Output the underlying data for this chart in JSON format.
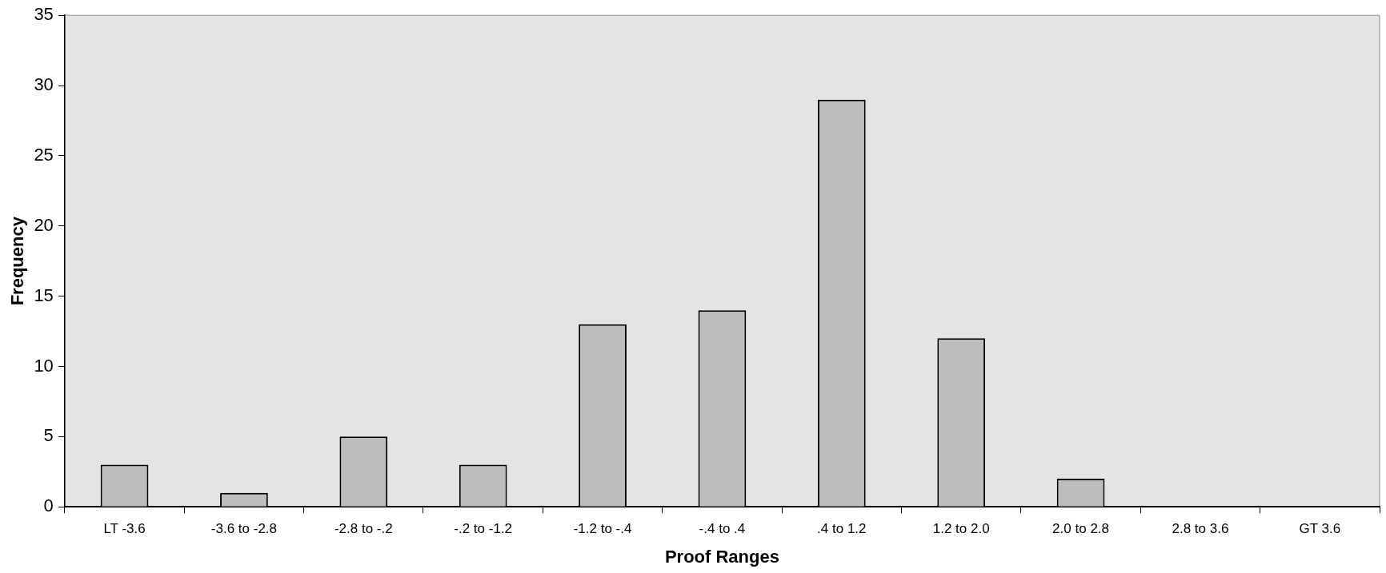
{
  "chart_data": {
    "type": "bar",
    "xlabel": "Proof Ranges",
    "ylabel": "Frequency",
    "categories": [
      "LT -3.6",
      "-3.6 to -2.8",
      "-2.8 to -.2",
      "-.2 to -1.2",
      "-1.2 to -.4",
      "-.4 to .4",
      ".4 to 1.2",
      "1.2 to 2.0",
      "2.0 to 2.8",
      "2.8 to 3.6",
      "GT 3.6"
    ],
    "values": [
      3,
      1,
      5,
      3,
      13,
      14,
      29,
      12,
      2,
      0,
      0
    ],
    "color": "#bdbdbd",
    "ylim": [
      0,
      35
    ],
    "yticks": [
      0,
      5,
      10,
      15,
      20,
      25,
      30,
      35
    ],
    "grid": false,
    "legend": false
  }
}
